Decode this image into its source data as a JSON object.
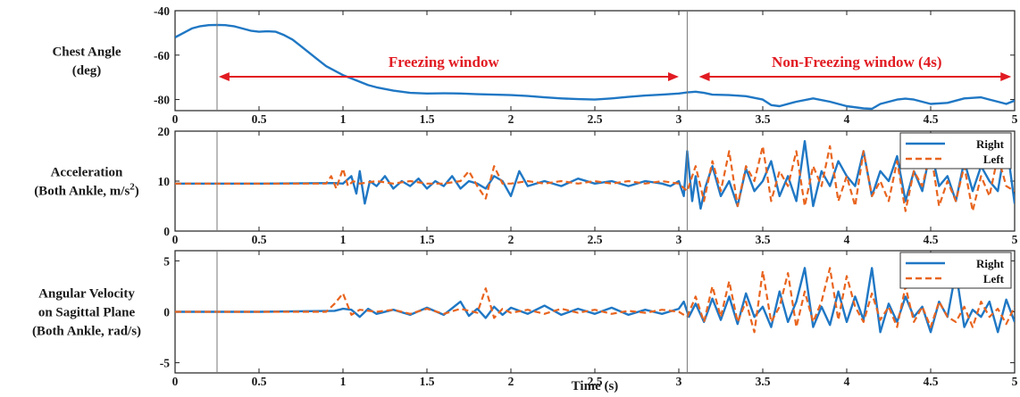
{
  "colors": {
    "right": "#1f77c4",
    "left": "#e8641e",
    "annotation": "#e11b22",
    "axis": "#222222",
    "marker": "#777777"
  },
  "chart_data": [
    {
      "type": "line",
      "ylabel_lines": [
        "Chest Angle",
        "(deg)"
      ],
      "xlim": [
        0,
        5
      ],
      "ylim": [
        -85,
        -40
      ],
      "yticks": [
        "-40",
        "-60",
        "-80"
      ],
      "ytick_values": [
        -40,
        -60,
        -80
      ],
      "xticks": [
        "0",
        "0.5",
        "1",
        "1.5",
        "2",
        "2.5",
        "3",
        "3.5",
        "4",
        "4.5",
        "5"
      ],
      "legend": null,
      "series": [
        {
          "color": "#1f77c4",
          "style": "solid",
          "x": [
            0,
            0.05,
            0.1,
            0.15,
            0.2,
            0.25,
            0.3,
            0.35,
            0.4,
            0.45,
            0.5,
            0.55,
            0.6,
            0.65,
            0.7,
            0.75,
            0.8,
            0.85,
            0.9,
            0.95,
            1.0,
            1.05,
            1.1,
            1.15,
            1.2,
            1.3,
            1.4,
            1.5,
            1.6,
            1.7,
            1.8,
            1.9,
            2.0,
            2.1,
            2.2,
            2.3,
            2.4,
            2.5,
            2.6,
            2.7,
            2.8,
            2.9,
            3.0,
            3.05,
            3.1,
            3.15,
            3.2,
            3.3,
            3.4,
            3.5,
            3.55,
            3.6,
            3.7,
            3.8,
            3.9,
            4.0,
            4.1,
            4.15,
            4.2,
            4.3,
            4.35,
            4.4,
            4.5,
            4.6,
            4.7,
            4.8,
            4.85,
            4.9,
            4.95,
            5.0
          ],
          "y": [
            -52,
            -50,
            -48,
            -47,
            -46.5,
            -46.4,
            -46.5,
            -47,
            -48,
            -49,
            -49.5,
            -49.3,
            -49.5,
            -51,
            -53,
            -56,
            -59,
            -62,
            -65,
            -67,
            -69,
            -70.5,
            -72,
            -73.5,
            -74.5,
            -76,
            -77,
            -77.3,
            -77.2,
            -77.3,
            -77.6,
            -77.8,
            -78,
            -78.4,
            -79,
            -79.5,
            -79.8,
            -80,
            -79.5,
            -78.8,
            -78.2,
            -77.8,
            -77.3,
            -76.8,
            -76.5,
            -77,
            -77.8,
            -78,
            -78.5,
            -80,
            -82.5,
            -83,
            -81,
            -79.5,
            -81,
            -83,
            -84,
            -84.2,
            -82,
            -80,
            -79.6,
            -80,
            -82,
            -81.5,
            -79.5,
            -79,
            -80,
            -81,
            -82,
            -80.5
          ]
        }
      ]
    },
    {
      "type": "line",
      "ylabel_lines": [
        "Acceleration",
        "(Both Ankle, m/s²)"
      ],
      "xlim": [
        0,
        5
      ],
      "ylim": [
        0,
        20
      ],
      "yticks": [
        "20",
        "10",
        "0"
      ],
      "ytick_values": [
        20,
        10,
        0
      ],
      "xticks": [
        "0",
        "0.5",
        "1",
        "1.5",
        "2",
        "2.5",
        "3",
        "3.5",
        "4",
        "4.5",
        "5"
      ],
      "legend": [
        "Right",
        "Left"
      ],
      "series": [
        {
          "name": "Right",
          "color": "#1f77c4",
          "style": "solid",
          "x": [
            0,
            0.5,
            0.95,
            1.0,
            1.05,
            1.08,
            1.1,
            1.13,
            1.16,
            1.2,
            1.25,
            1.3,
            1.35,
            1.4,
            1.45,
            1.5,
            1.55,
            1.6,
            1.65,
            1.7,
            1.75,
            1.8,
            1.85,
            1.9,
            1.95,
            2.0,
            2.05,
            2.1,
            2.2,
            2.3,
            2.4,
            2.5,
            2.6,
            2.7,
            2.8,
            2.9,
            2.95,
            3.0,
            3.03,
            3.05,
            3.08,
            3.1,
            3.13,
            3.16,
            3.2,
            3.25,
            3.3,
            3.35,
            3.4,
            3.45,
            3.5,
            3.55,
            3.6,
            3.65,
            3.7,
            3.75,
            3.8,
            3.85,
            3.9,
            3.95,
            4.0,
            4.05,
            4.1,
            4.15,
            4.2,
            4.25,
            4.3,
            4.35,
            4.4,
            4.45,
            4.5,
            4.55,
            4.6,
            4.65,
            4.7,
            4.75,
            4.8,
            4.85,
            4.9,
            4.95,
            5.0
          ],
          "y": [
            9.5,
            9.5,
            9.6,
            9.5,
            11,
            7.5,
            12,
            5.5,
            10,
            9,
            11,
            8.5,
            10,
            9,
            10.5,
            8.5,
            10,
            9,
            11,
            8.5,
            10,
            9.5,
            8.5,
            11,
            10,
            7,
            12,
            9,
            10,
            9,
            10.5,
            9.5,
            10,
            9,
            10,
            9.5,
            9,
            10,
            7,
            16,
            6,
            11,
            4.5,
            9,
            13,
            7,
            10,
            5,
            12.5,
            8,
            10,
            14,
            7,
            11,
            6,
            18,
            5,
            12,
            9,
            14,
            11,
            9,
            16,
            7,
            12,
            10,
            15,
            6,
            12,
            8,
            16.5,
            9,
            11,
            6,
            14,
            8,
            13,
            10,
            8,
            18,
            5.5
          ]
        },
        {
          "name": "Left",
          "color": "#e8641e",
          "style": "dashed",
          "x": [
            0,
            0.5,
            0.9,
            0.93,
            0.96,
            1.0,
            1.03,
            1.06,
            1.1,
            1.2,
            1.3,
            1.4,
            1.5,
            1.6,
            1.7,
            1.75,
            1.8,
            1.85,
            1.9,
            1.95,
            2.0,
            2.1,
            2.2,
            2.3,
            2.4,
            2.5,
            2.6,
            2.7,
            2.8,
            2.9,
            3.0,
            3.05,
            3.1,
            3.15,
            3.2,
            3.25,
            3.3,
            3.35,
            3.4,
            3.45,
            3.5,
            3.55,
            3.6,
            3.65,
            3.7,
            3.75,
            3.8,
            3.85,
            3.9,
            3.95,
            4.0,
            4.05,
            4.1,
            4.15,
            4.2,
            4.25,
            4.3,
            4.35,
            4.4,
            4.45,
            4.5,
            4.55,
            4.6,
            4.65,
            4.7,
            4.75,
            4.8,
            4.85,
            4.9,
            4.95,
            5.0
          ],
          "y": [
            9.5,
            9.5,
            9.5,
            11,
            8.5,
            12.5,
            9,
            10,
            9.5,
            10,
            9.5,
            10,
            9.5,
            9.5,
            10,
            12,
            9,
            6.5,
            13,
            9.5,
            9.5,
            10,
            9.5,
            10,
            9.5,
            10,
            9.5,
            10,
            9.5,
            10,
            9.5,
            8,
            13,
            6,
            14,
            8,
            16,
            5,
            13,
            10,
            17,
            6,
            12,
            9,
            16,
            5,
            13,
            9,
            17,
            6,
            11,
            5,
            16,
            7,
            10,
            6,
            14,
            4,
            12,
            9,
            16,
            5,
            10,
            6,
            13,
            4,
            11,
            7,
            15,
            9,
            8
          ]
        }
      ]
    },
    {
      "type": "line",
      "ylabel_lines": [
        "Angular Velocity",
        "on Sagittal Plane",
        "(Both Ankle, rad/s)"
      ],
      "xlim": [
        0,
        5
      ],
      "ylim": [
        -6,
        6
      ],
      "yticks": [
        "5",
        "0",
        "-5"
      ],
      "ytick_values": [
        5,
        0,
        -5
      ],
      "xticks": [
        "0",
        "0.5",
        "1",
        "1.5",
        "2",
        "2.5",
        "3",
        "3.5",
        "4",
        "4.5",
        "5"
      ],
      "legend": [
        "Right",
        "Left"
      ],
      "series": [
        {
          "name": "Right",
          "color": "#1f77c4",
          "style": "solid",
          "x": [
            0,
            0.5,
            0.95,
            1.0,
            1.05,
            1.1,
            1.15,
            1.2,
            1.3,
            1.4,
            1.5,
            1.6,
            1.7,
            1.75,
            1.8,
            1.85,
            1.9,
            1.95,
            2.0,
            2.1,
            2.2,
            2.3,
            2.4,
            2.5,
            2.6,
            2.7,
            2.8,
            2.9,
            3.0,
            3.03,
            3.06,
            3.1,
            3.15,
            3.2,
            3.25,
            3.3,
            3.35,
            3.4,
            3.45,
            3.5,
            3.55,
            3.6,
            3.65,
            3.7,
            3.75,
            3.8,
            3.85,
            3.9,
            3.95,
            4.0,
            4.05,
            4.1,
            4.15,
            4.2,
            4.25,
            4.3,
            4.35,
            4.4,
            4.45,
            4.5,
            4.55,
            4.6,
            4.65,
            4.7,
            4.75,
            4.8,
            4.85,
            4.9,
            4.95,
            5.0
          ],
          "y": [
            0,
            0,
            0.1,
            0.3,
            0.2,
            -0.5,
            0.3,
            -0.2,
            0.2,
            -0.3,
            0.4,
            -0.3,
            1.0,
            -0.4,
            0.3,
            -0.6,
            0.5,
            -0.3,
            0.4,
            -0.2,
            0.6,
            -0.3,
            0.3,
            -0.2,
            0.4,
            -0.3,
            0.2,
            -0.2,
            0.3,
            1.0,
            -0.5,
            0.8,
            -1.0,
            1.3,
            -0.8,
            1.5,
            -1.2,
            1.8,
            -0.5,
            0.5,
            -1.5,
            2.0,
            -1.0,
            1.0,
            4.3,
            -1.5,
            0.5,
            -1.3,
            2.0,
            -1.0,
            1.5,
            -0.8,
            4.3,
            -2.0,
            0.8,
            -1.0,
            1.5,
            -0.5,
            0.5,
            -2.0,
            1.0,
            -0.5,
            4.0,
            -1.5,
            0.2,
            -0.5,
            1.0,
            -2.0,
            1.2,
            -1.0
          ]
        },
        {
          "name": "Left",
          "color": "#e8641e",
          "style": "dashed",
          "x": [
            0,
            0.5,
            0.9,
            0.95,
            1.0,
            1.05,
            1.1,
            1.2,
            1.3,
            1.4,
            1.5,
            1.6,
            1.7,
            1.8,
            1.85,
            1.9,
            1.95,
            2.0,
            2.1,
            2.2,
            2.3,
            2.4,
            2.5,
            2.6,
            2.7,
            2.8,
            2.9,
            3.0,
            3.05,
            3.1,
            3.15,
            3.2,
            3.25,
            3.3,
            3.35,
            3.4,
            3.45,
            3.5,
            3.55,
            3.6,
            3.65,
            3.7,
            3.75,
            3.8,
            3.85,
            3.9,
            3.95,
            4.0,
            4.05,
            4.1,
            4.15,
            4.2,
            4.25,
            4.3,
            4.35,
            4.4,
            4.45,
            4.5,
            4.55,
            4.6,
            4.65,
            4.7,
            4.75,
            4.8,
            4.85,
            4.9,
            4.95,
            5.0
          ],
          "y": [
            0,
            0,
            0,
            0.8,
            1.8,
            -0.3,
            0.2,
            0,
            0.2,
            -0.2,
            0.3,
            -0.2,
            0.3,
            -0.1,
            2.3,
            -0.6,
            0.3,
            -0.1,
            0.2,
            -0.2,
            0.3,
            -0.1,
            0.2,
            -0.2,
            0.1,
            -0.1,
            0.2,
            0,
            -0.5,
            1.5,
            -1.0,
            2.5,
            -0.5,
            3.0,
            -1.0,
            1.0,
            -2.0,
            4.0,
            -1.0,
            0.5,
            3.8,
            -1.5,
            2.0,
            -1.0,
            1.0,
            4.3,
            -0.8,
            3.5,
            0.5,
            -1.0,
            1.8,
            -0.8,
            0.5,
            -1.5,
            2.5,
            -1.0,
            0.5,
            -1.5,
            1.0,
            -0.5,
            -1.0,
            0.5,
            -1.5,
            1.0,
            -0.5,
            0.3,
            -1.2,
            0.5
          ]
        }
      ]
    }
  ],
  "annotations": {
    "freezing": "Freezing window",
    "non_freezing": "Non-Freezing window (4s)"
  },
  "markers_x": [
    0.25,
    3.05
  ],
  "xlabel": "Time (s)"
}
